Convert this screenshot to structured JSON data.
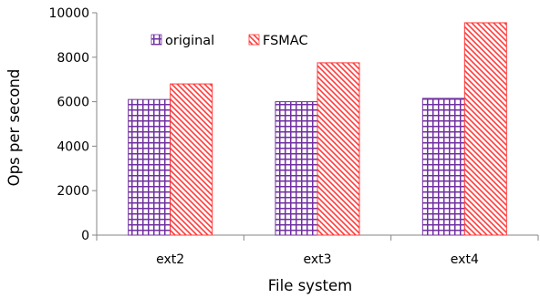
{
  "chart_data": {
    "type": "bar",
    "title": "",
    "xlabel": "File system",
    "ylabel": "Ops per second",
    "categories": [
      "ext2",
      "ext3",
      "ext4"
    ],
    "series": [
      {
        "name": "original",
        "values": [
          6100,
          6000,
          6150
        ],
        "color": "#7030a0",
        "pattern": "grid"
      },
      {
        "name": "FSMAC",
        "values": [
          6800,
          7750,
          9550
        ],
        "color": "#ff4040",
        "pattern": "diagonal-hatch"
      }
    ],
    "ylim": [
      0,
      10000
    ],
    "yticks": [
      0,
      2000,
      4000,
      6000,
      8000,
      10000
    ],
    "grid": false,
    "legend_position": "top-left"
  }
}
